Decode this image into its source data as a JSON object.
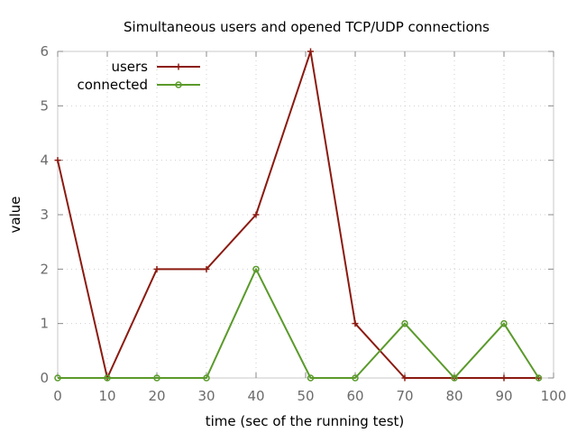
{
  "chart_data": {
    "type": "line",
    "title": "Simultaneous users and opened TCP/UDP connections",
    "xlabel": "time (sec of the running test)",
    "ylabel": "value",
    "xlim": [
      0,
      100
    ],
    "ylim": [
      0,
      6
    ],
    "xticks": [
      "0",
      "10",
      "20",
      "30",
      "40",
      "50",
      "60",
      "70",
      "80",
      "90",
      "100"
    ],
    "yticks": [
      "0",
      "1",
      "2",
      "3",
      "4",
      "5",
      "6"
    ],
    "grid": true,
    "legend_position": "top-left",
    "series": [
      {
        "name": "users",
        "color": "#8b1a10",
        "marker": "plus",
        "x": [
          0,
          10,
          20,
          30,
          40,
          51,
          60,
          70,
          80,
          90,
          97
        ],
        "y": [
          4,
          0,
          2,
          2,
          3,
          6,
          1,
          0,
          0,
          0,
          0
        ]
      },
      {
        "name": "connected",
        "color": "#5a9a2a",
        "marker": "circle",
        "x": [
          0,
          10,
          20,
          30,
          40,
          51,
          60,
          70,
          80,
          90,
          97
        ],
        "y": [
          0,
          0,
          0,
          0,
          2,
          0,
          0,
          1,
          0,
          1,
          0
        ]
      }
    ]
  }
}
